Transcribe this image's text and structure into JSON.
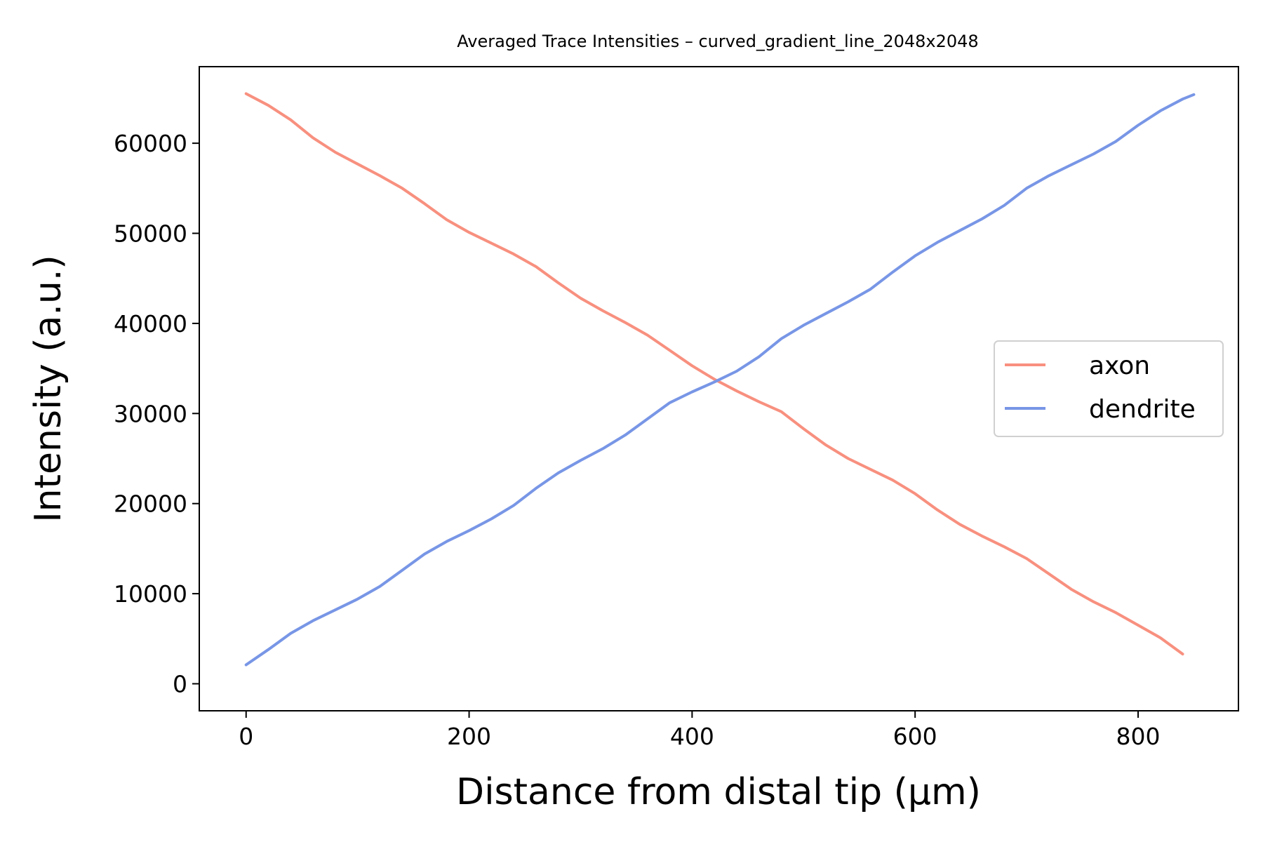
{
  "chart_data": {
    "type": "line",
    "title": "Averaged Trace Intensities – curved_gradient_line_2048x2048",
    "xlabel": "Distance from distal tip (µm)",
    "ylabel": "Intensity (a.u.)",
    "xlim": [
      -42,
      890
    ],
    "ylim": [
      -3000,
      68500
    ],
    "xticks": [
      0,
      200,
      400,
      600,
      800
    ],
    "yticks": [
      0,
      10000,
      20000,
      30000,
      40000,
      50000,
      60000
    ],
    "grid": false,
    "legend": {
      "placement": "center-right"
    },
    "series": [
      {
        "name": "axon",
        "color": "#f8907f",
        "x": [
          0,
          20,
          40,
          60,
          80,
          100,
          120,
          140,
          160,
          180,
          200,
          220,
          240,
          260,
          280,
          300,
          320,
          340,
          360,
          380,
          400,
          420,
          440,
          460,
          480,
          500,
          520,
          540,
          560,
          580,
          600,
          620,
          640,
          660,
          680,
          700,
          720,
          740,
          760,
          780,
          800,
          820,
          840
        ],
        "values": [
          65500,
          64200,
          62600,
          60600,
          59000,
          57700,
          56400,
          55000,
          53300,
          51500,
          50100,
          48900,
          47700,
          46300,
          44500,
          42800,
          41400,
          40100,
          38700,
          37000,
          35300,
          33800,
          32500,
          31300,
          30200,
          28300,
          26500,
          25000,
          23800,
          22600,
          21100,
          19300,
          17700,
          16400,
          15200,
          13900,
          12200,
          10500,
          9100,
          7900,
          6500,
          5100,
          3300
        ]
      },
      {
        "name": "dendrite",
        "color": "#7896e6",
        "x": [
          0,
          20,
          40,
          60,
          80,
          100,
          120,
          140,
          160,
          180,
          200,
          220,
          240,
          260,
          280,
          300,
          320,
          340,
          360,
          380,
          400,
          420,
          440,
          460,
          480,
          500,
          520,
          540,
          560,
          580,
          600,
          620,
          640,
          660,
          680,
          700,
          720,
          740,
          760,
          780,
          800,
          820,
          840,
          850
        ],
        "values": [
          2100,
          3800,
          5600,
          7000,
          8200,
          9400,
          10800,
          12600,
          14400,
          15800,
          17000,
          18300,
          19800,
          21700,
          23400,
          24800,
          26100,
          27600,
          29400,
          31200,
          32400,
          33500,
          34700,
          36300,
          38300,
          39800,
          41100,
          42400,
          43800,
          45700,
          47500,
          49000,
          50300,
          51600,
          53100,
          55000,
          56400,
          57600,
          58800,
          60200,
          62000,
          63600,
          64900,
          65400
        ]
      }
    ]
  }
}
